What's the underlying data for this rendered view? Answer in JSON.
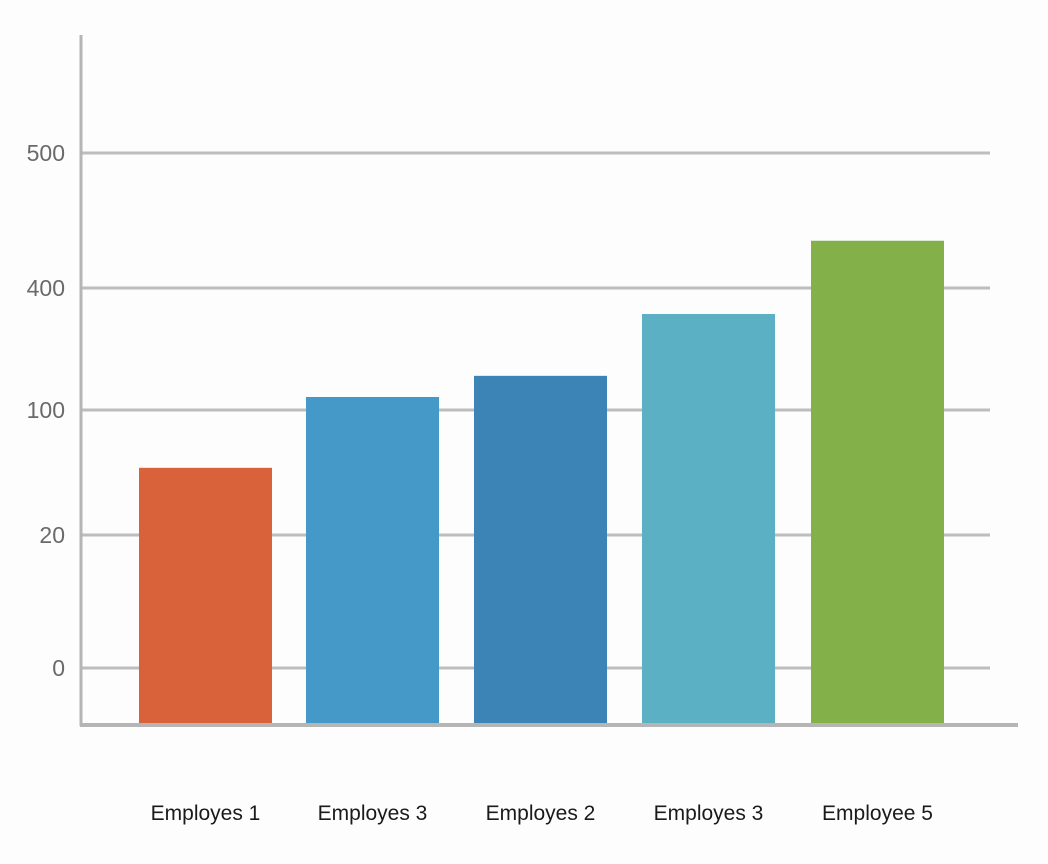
{
  "chart_data": {
    "type": "bar",
    "title": "",
    "xlabel": "",
    "ylabel": "",
    "categories": [
      "Employes 1",
      "Employes 3",
      "Employes 2",
      "Employes 3",
      "Employee 5"
    ],
    "values": [
      63,
      132,
      184,
      336,
      435
    ],
    "colors": [
      "#d9623a",
      "#4599c9",
      "#3b84b5",
      "#5bb0c4",
      "#84b04a"
    ],
    "yticks": [
      0,
      20,
      100,
      400,
      500
    ],
    "ytick_labels": [
      "0",
      "20",
      "100",
      "400",
      "500"
    ],
    "grid": true,
    "legend": "none"
  }
}
